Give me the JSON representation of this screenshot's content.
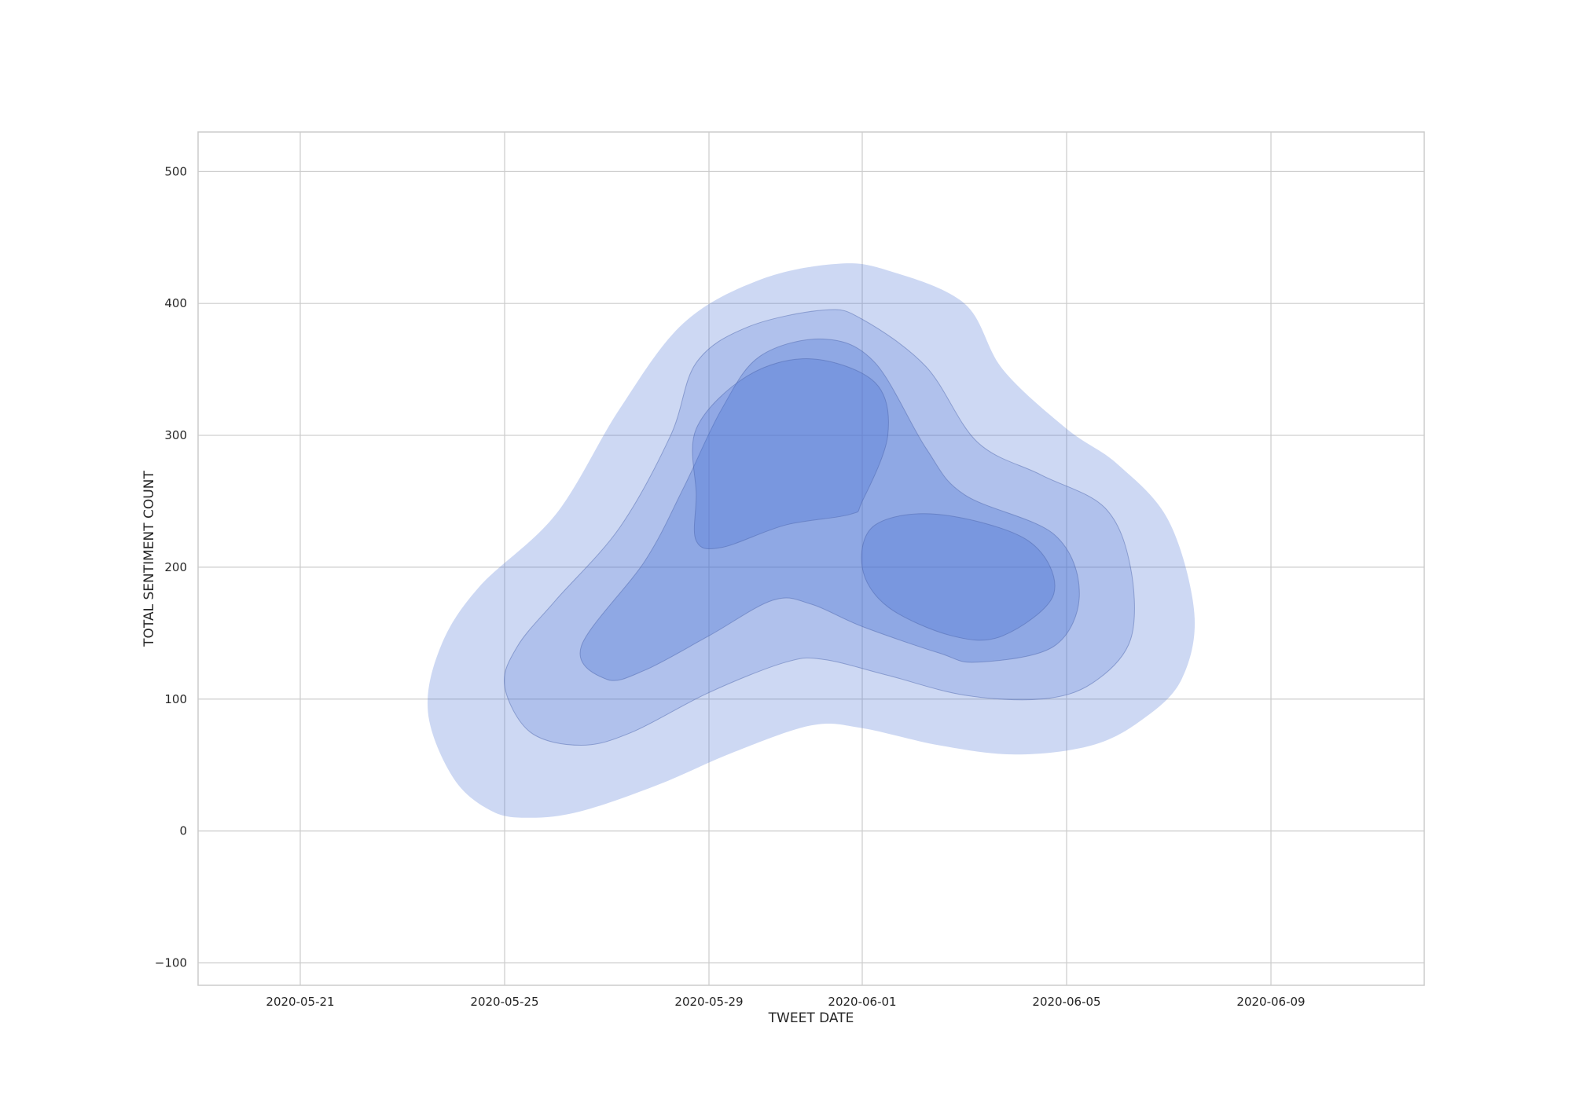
{
  "chart_data": {
    "type": "kde-contour",
    "title": "",
    "xlabel": "TWEET DATE",
    "ylabel": "TOTAL SENTIMENT COUNT",
    "x_axis": {
      "type": "date",
      "range": [
        "2020-05-19",
        "2020-06-12"
      ],
      "ticks": [
        "2020-05-21",
        "2020-05-25",
        "2020-05-29",
        "2020-06-01",
        "2020-06-05",
        "2020-06-09"
      ]
    },
    "y_axis": {
      "range": [
        -117,
        530
      ],
      "ticks": [
        -100,
        0,
        100,
        200,
        300,
        400,
        500
      ],
      "tick_labels": [
        "−100",
        "0",
        "100",
        "200",
        "300",
        "400",
        "500"
      ]
    },
    "grid": true,
    "legend": "none",
    "fill_color": "#4a72d4",
    "levels": [
      {
        "level": 1,
        "fill_opacity": 0.28,
        "polygons": [
          [
            [
              "2020-05-23 12:00",
              90
            ],
            [
              "2020-05-24 00:00",
              40
            ],
            [
              "2020-05-24 18:00",
              15
            ],
            [
              "2020-05-25 12:00",
              10
            ],
            [
              "2020-05-26 12:00",
              15
            ],
            [
              "2020-05-28 00:00",
              35
            ],
            [
              "2020-05-29 12:00",
              60
            ],
            [
              "2020-05-31 00:00",
              80
            ],
            [
              "2020-06-01 00:00",
              78
            ],
            [
              "2020-06-02 12:00",
              65
            ],
            [
              "2020-06-04 00:00",
              58
            ],
            [
              "2020-06-05 12:00",
              65
            ],
            [
              "2020-06-06 12:00",
              85
            ],
            [
              "2020-06-07 06:00",
              115
            ],
            [
              "2020-06-07 12:00",
              165
            ],
            [
              "2020-06-07 00:00",
              235
            ],
            [
              "2020-06-06 00:00",
              278
            ],
            [
              "2020-06-05 00:00",
              305
            ],
            [
              "2020-06-03 18:00",
              350
            ],
            [
              "2020-06-03 00:00",
              400
            ],
            [
              "2020-06-01 12:00",
              425
            ],
            [
              "2020-05-31 12:00",
              430
            ],
            [
              "2020-05-30 00:00",
              418
            ],
            [
              "2020-05-28 12:00",
              385
            ],
            [
              "2020-05-27 06:00",
              320
            ],
            [
              "2020-05-26 00:00",
              240
            ],
            [
              "2020-05-24 12:00",
              185
            ],
            [
              "2020-05-23 18:00",
              140
            ]
          ]
        ]
      },
      {
        "level": 2,
        "fill_opacity": 0.22,
        "polygons": [
          [
            [
              "2020-05-25 00:00",
              110
            ],
            [
              "2020-05-25 12:00",
              75
            ],
            [
              "2020-05-26 12:00",
              65
            ],
            [
              "2020-05-27 12:00",
              75
            ],
            [
              "2020-05-29 00:00",
              105
            ],
            [
              "2020-05-30 12:00",
              128
            ],
            [
              "2020-05-31 06:00",
              130
            ],
            [
              "2020-06-01 12:00",
              118
            ],
            [
              "2020-06-03 00:00",
              103
            ],
            [
              "2020-06-04 12:00",
              100
            ],
            [
              "2020-06-05 12:00",
              112
            ],
            [
              "2020-06-06 06:00",
              145
            ],
            [
              "2020-06-06 06:00",
              200
            ],
            [
              "2020-06-05 18:00",
              245
            ],
            [
              "2020-06-04 12:00",
              270
            ],
            [
              "2020-06-03 06:00",
              295
            ],
            [
              "2020-06-02 06:00",
              352
            ],
            [
              "2020-06-01 00:00",
              388
            ],
            [
              "2020-05-31 06:00",
              395
            ],
            [
              "2020-05-29 18:00",
              382
            ],
            [
              "2020-05-28 18:00",
              355
            ],
            [
              "2020-05-28 06:00",
              300
            ],
            [
              "2020-05-27 06:00",
              230
            ],
            [
              "2020-05-26 00:00",
              175
            ],
            [
              "2020-05-25 06:00",
              140
            ]
          ]
        ]
      },
      {
        "level": 3,
        "fill_opacity": 0.32,
        "polygons": [
          [
            [
              "2020-05-26 12:00",
              140
            ],
            [
              "2020-05-27 00:00",
              115
            ],
            [
              "2020-05-27 18:00",
              122
            ],
            [
              "2020-05-29 00:00",
              148
            ],
            [
              "2020-05-30 06:00",
              175
            ],
            [
              "2020-05-31 00:00",
              172
            ],
            [
              "2020-06-01 00:00",
              155
            ],
            [
              "2020-06-02 12:00",
              135
            ],
            [
              "2020-06-03 06:00",
              128
            ],
            [
              "2020-06-04 18:00",
              140
            ],
            [
              "2020-06-05 06:00",
              180
            ],
            [
              "2020-06-04 18:00",
              225
            ],
            [
              "2020-06-03 00:00",
              255
            ],
            [
              "2020-06-02 06:00",
              290
            ],
            [
              "2020-06-01 06:00",
              355
            ],
            [
              "2020-05-31 06:00",
              373
            ],
            [
              "2020-05-30 00:00",
              360
            ],
            [
              "2020-05-29 06:00",
              320
            ],
            [
              "2020-05-28 12:00",
              260
            ],
            [
              "2020-05-27 18:00",
              205
            ]
          ]
        ]
      },
      {
        "level": 4,
        "fill_opacity": 0.3,
        "polygons": [
          [
            [
              "2020-05-28 18:00",
              220
            ],
            [
              "2020-05-29 06:00",
              215
            ],
            [
              "2020-05-30 12:00",
              232
            ],
            [
              "2020-05-31 18:00",
              240
            ],
            [
              "2020-06-01 00:00",
              250
            ],
            [
              "2020-06-01 12:00",
              300
            ],
            [
              "2020-06-01 06:00",
              340
            ],
            [
              "2020-05-31 00:00",
              358
            ],
            [
              "2020-05-29 18:00",
              345
            ],
            [
              "2020-05-28 18:00",
              305
            ],
            [
              "2020-05-28 18:00",
              255
            ]
          ],
          [
            [
              "2020-06-01 00:00",
              200
            ],
            [
              "2020-06-01 12:00",
              170
            ],
            [
              "2020-06-02 18:00",
              148
            ],
            [
              "2020-06-03 18:00",
              148
            ],
            [
              "2020-06-04 18:00",
              180
            ],
            [
              "2020-06-04 06:00",
              220
            ],
            [
              "2020-06-02 12:00",
              240
            ],
            [
              "2020-06-01 06:00",
              232
            ]
          ]
        ]
      }
    ]
  }
}
